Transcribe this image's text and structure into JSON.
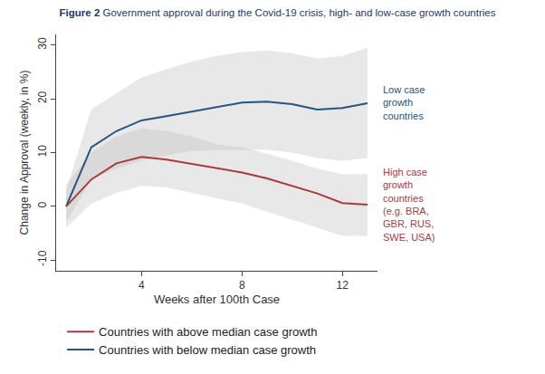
{
  "chart_data": {
    "type": "line",
    "title": "Figure 2 Government approval during the Covid-19 crisis, high- and low-case growth countries",
    "x_label": "Weeks after 100th Case",
    "y_label": "Change in Approval (weekly, in %)",
    "x": [
      1,
      2,
      3,
      4,
      5,
      6,
      7,
      8,
      9,
      10,
      11,
      12,
      13
    ],
    "xlim": [
      0.6,
      13.4
    ],
    "xticks": [
      4,
      8,
      12
    ],
    "ylim": [
      -12,
      32
    ],
    "yticks": [
      -10,
      0,
      10,
      20,
      30
    ],
    "grid": false,
    "legend": "bottom",
    "series": [
      {
        "name": "Countries with below median case growth",
        "color": "#24557f",
        "values": [
          0,
          11,
          14,
          16,
          16.8,
          17.6,
          18.5,
          19.3,
          19.5,
          19,
          18,
          18.3,
          19.2
        ],
        "lower": [
          -3,
          5,
          7,
          8.5,
          9.5,
          10.3,
          10.5,
          10.5,
          10.5,
          10,
          9,
          8.5,
          9
        ],
        "upper": [
          3,
          18,
          21,
          24,
          25.5,
          27,
          28,
          28.7,
          29,
          28.5,
          27.5,
          28,
          29.5
        ],
        "annotation": [
          "Low case",
          "growth",
          "countries"
        ]
      },
      {
        "name": "Countries with above median case growth",
        "color": "#a93a3e",
        "values": [
          0,
          5,
          8,
          9.2,
          8.7,
          7.9,
          7.1,
          6.3,
          5.2,
          3.8,
          2.4,
          0.6,
          0.3
        ],
        "lower": [
          -4,
          0.5,
          2.5,
          3.8,
          3.5,
          2.5,
          1.5,
          0.5,
          -1,
          -2.5,
          -4,
          -5.5,
          -5.5
        ],
        "upper": [
          4,
          10,
          13,
          14.5,
          14,
          13,
          11.5,
          11,
          9.8,
          8.5,
          7,
          6,
          6
        ],
        "annotation": [
          "High case",
          "growth",
          "countries",
          "(e.g. BRA,",
          "GBR, RUS,",
          "SWE, USA)"
        ]
      }
    ]
  }
}
